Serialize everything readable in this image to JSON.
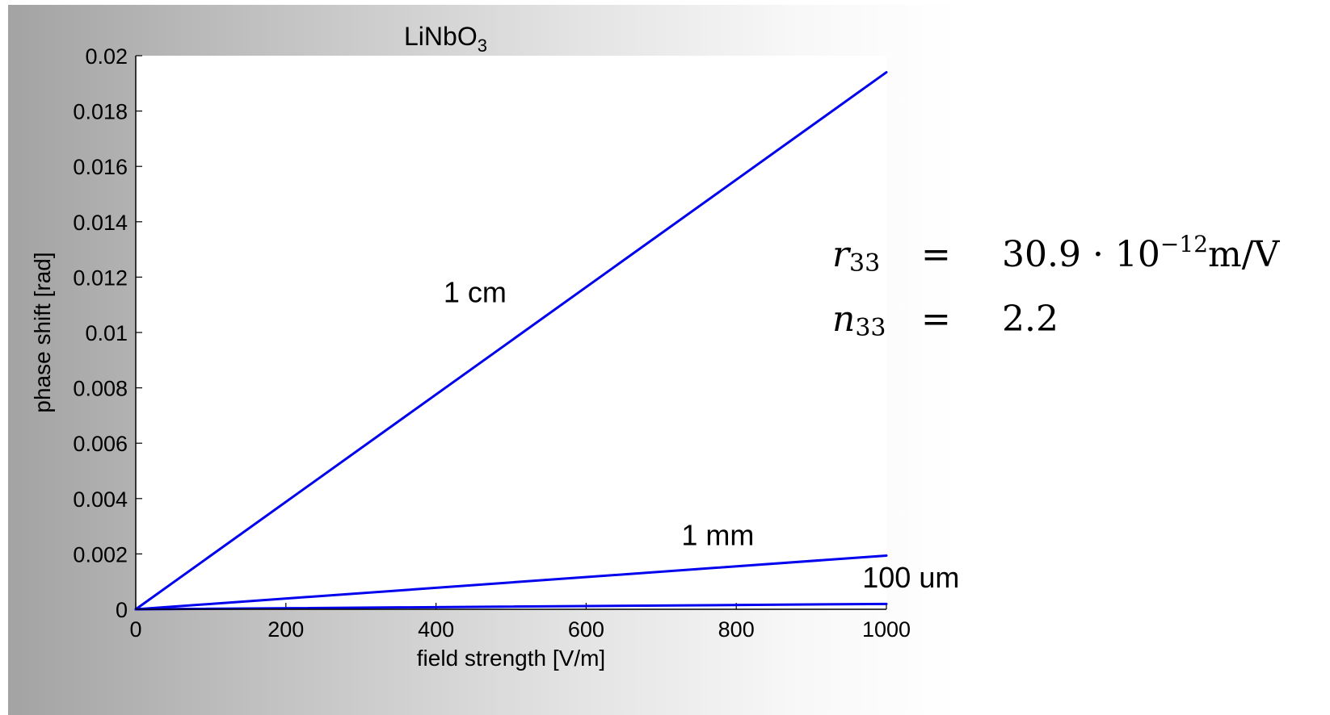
{
  "chart_data": {
    "type": "line",
    "title": {
      "main": "LiNbO",
      "subscript": "3"
    },
    "xlabel": "field strength [V/m]",
    "ylabel": "phase shift [rad]",
    "xlim": [
      0,
      1000
    ],
    "ylim": [
      0,
      0.02
    ],
    "x_ticks": [
      0,
      200,
      400,
      600,
      800,
      1000
    ],
    "y_ticks": [
      0,
      0.002,
      0.004,
      0.006,
      0.008,
      0.01,
      0.012,
      0.014,
      0.016,
      0.018,
      0.02
    ],
    "x_tick_labels": [
      "0",
      "200",
      "400",
      "600",
      "800",
      "1000"
    ],
    "y_tick_labels": [
      "0",
      "0.002",
      "0.004",
      "0.006",
      "0.008",
      "0.01",
      "0.012",
      "0.014",
      "0.016",
      "0.018",
      "0.02"
    ],
    "grid": false,
    "line_color": "#0000ee",
    "series": [
      {
        "name": "1 cm",
        "x": [
          0,
          1000
        ],
        "y": [
          0,
          0.0194
        ]
      },
      {
        "name": "1 mm",
        "x": [
          0,
          1000
        ],
        "y": [
          0,
          0.00194
        ]
      },
      {
        "name": "100 um",
        "x": [
          0,
          1000
        ],
        "y": [
          0,
          0.000194
        ]
      }
    ]
  },
  "equations": [
    {
      "lhs": "r",
      "lhs_sub": "33",
      "sign": "=",
      "rhs_before": "30.9 · 10",
      "rhs_sup": "−12",
      "rhs_after": "m/V"
    },
    {
      "lhs": "n",
      "lhs_sub": "33",
      "sign": "=",
      "rhs_before": "2.2",
      "rhs_sup": "",
      "rhs_after": ""
    }
  ]
}
